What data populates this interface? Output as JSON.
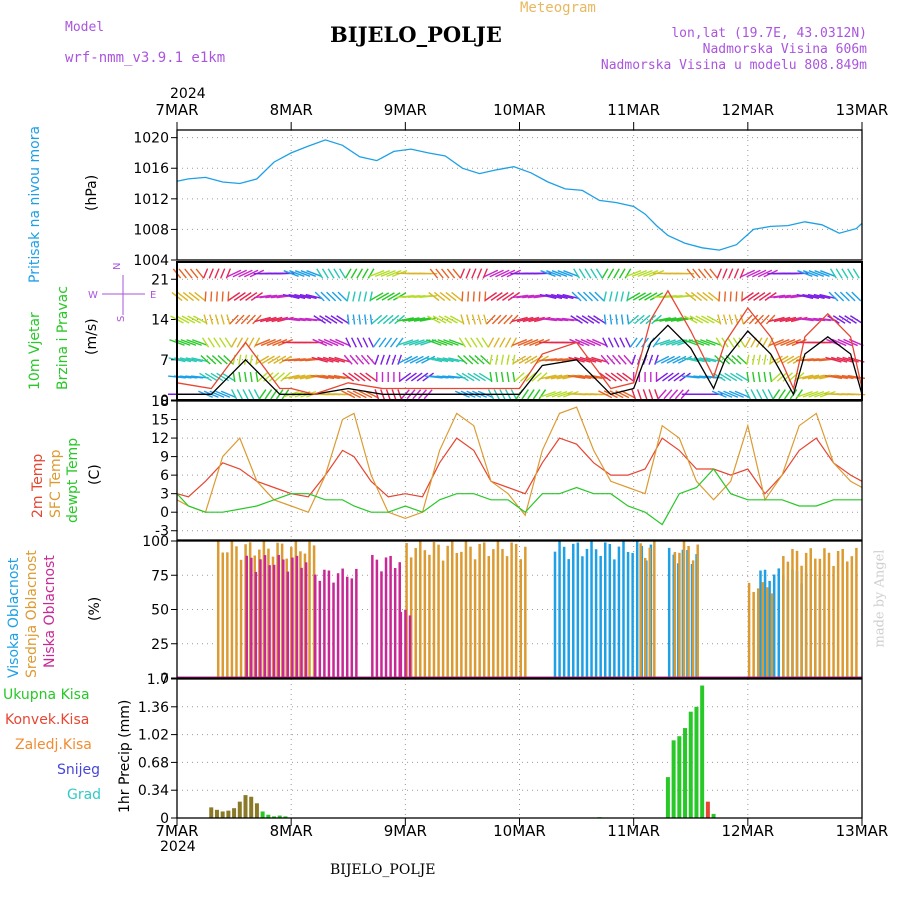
{
  "header": {
    "model_label": "Model",
    "model_name": "wrf-nmm_v3.9.1 e1km",
    "meteogram_label": "Meteogram",
    "station_title": "BIJELO_POLJE",
    "lonlat": "lon,lat (19.7E, 43.0312N)",
    "elevation": "Nadmorska Visina 606m",
    "model_elevation": "Nadmorska Visina u modelu 808.849m",
    "footer_station": "BIJELO_POLJE",
    "watermark": "made by Angel",
    "colors": {
      "model": "#aa55dd",
      "meteogram": "#e8b860",
      "info": "#aa55dd",
      "title": "#000000"
    }
  },
  "time_axis": {
    "year_top": "2024",
    "year_bottom": "2024",
    "ticks": [
      "7MAR",
      "8MAR",
      "9MAR",
      "10MAR",
      "11MAR",
      "12MAR",
      "13MAR"
    ]
  },
  "chart_data": [
    {
      "type": "line",
      "name": "pressure",
      "ylabel_lines": [
        "Pritisak na nivou mora"
      ],
      "unit": "(hPa)",
      "ylim": [
        1004,
        1021
      ],
      "yticks": [
        "1004",
        "1008",
        "1012",
        "1016",
        "1020"
      ],
      "yticks_values": [
        1004,
        1008,
        1012,
        1016,
        1020
      ],
      "grid": true,
      "series": [
        {
          "color": "#1ea0e6",
          "x": [
            0,
            0.1,
            0.25,
            0.4,
            0.55,
            0.7,
            0.85,
            1.0,
            1.15,
            1.3,
            1.45,
            1.6,
            1.75,
            1.9,
            2.05,
            2.2,
            2.35,
            2.5,
            2.65,
            2.8,
            2.95,
            3.1,
            3.25,
            3.4,
            3.55,
            3.7,
            3.85,
            4.0,
            4.1,
            4.2,
            4.3,
            4.45,
            4.6,
            4.75,
            4.9,
            5.05,
            5.2,
            5.35,
            5.5,
            5.65,
            5.8,
            5.95,
            6.0
          ],
          "y": [
            1014.3,
            1014.6,
            1014.8,
            1014.2,
            1014.0,
            1014.6,
            1016.8,
            1018.0,
            1018.9,
            1019.7,
            1019.0,
            1017.5,
            1017.0,
            1018.2,
            1018.5,
            1018.0,
            1017.6,
            1016.0,
            1015.3,
            1015.8,
            1016.2,
            1015.4,
            1014.2,
            1013.3,
            1013.1,
            1011.8,
            1011.5,
            1011.0,
            1010.0,
            1008.5,
            1007.2,
            1006.2,
            1005.6,
            1005.3,
            1006.0,
            1008.0,
            1008.4,
            1008.5,
            1009.0,
            1008.6,
            1007.5,
            1008.1,
            1008.8
          ]
        }
      ]
    },
    {
      "type": "line",
      "name": "wind",
      "ylabel_lines": [
        "10m Vjetar",
        "Brzina i Pravac"
      ],
      "unit": "(m/s)",
      "ylim": [
        0,
        24
      ],
      "yticks": [
        "0",
        "7",
        "14",
        "21"
      ],
      "yticks_values": [
        0,
        7,
        14,
        21
      ],
      "grid": true,
      "compass": {
        "n": "N",
        "s": "S",
        "e": "E",
        "w": "W",
        "color": "#aa55dd"
      },
      "series": [
        {
          "color": "#000000",
          "x": [
            0,
            0.3,
            0.6,
            0.9,
            1.0,
            1.2,
            1.5,
            1.8,
            2.1,
            2.4,
            2.7,
            3.0,
            3.2,
            3.5,
            3.8,
            4.0,
            4.15,
            4.3,
            4.5,
            4.7,
            4.8,
            5.0,
            5.2,
            5.4,
            5.5,
            5.7,
            5.9,
            6.0
          ],
          "y": [
            1,
            1,
            7,
            1,
            1,
            1,
            2,
            1,
            1,
            1,
            1,
            1,
            6,
            7,
            1,
            2,
            10,
            13,
            9,
            2,
            7,
            12,
            8,
            1,
            8,
            11,
            8,
            1
          ]
        },
        {
          "color": "#e64632",
          "x": [
            0,
            0.3,
            0.6,
            0.9,
            1.0,
            1.2,
            1.5,
            1.8,
            2.1,
            2.4,
            2.7,
            3.0,
            3.2,
            3.5,
            3.8,
            4.0,
            4.15,
            4.3,
            4.5,
            4.7,
            4.8,
            5.0,
            5.2,
            5.4,
            5.5,
            5.7,
            5.9,
            6.0
          ],
          "y": [
            3,
            2,
            10,
            2,
            2,
            1,
            3,
            2,
            2,
            2,
            2,
            2,
            8,
            10,
            2,
            3,
            14,
            19,
            12,
            4,
            10,
            16,
            11,
            2,
            11,
            15,
            11,
            2
          ]
        }
      ]
    },
    {
      "type": "line",
      "name": "temperature",
      "ylabel_lines": [
        "2m Temp",
        "SFC Temp",
        "dewpt Temp"
      ],
      "label_colors": [
        "#e64632",
        "#dc9b32",
        "#28c828"
      ],
      "unit": "(C)",
      "ylim": [
        -4.5,
        18
      ],
      "yticks": [
        "-3",
        "0",
        "3",
        "6",
        "9",
        "12",
        "15",
        "18"
      ],
      "yticks_values": [
        -3,
        0,
        3,
        6,
        9,
        12,
        15,
        18
      ],
      "grid": true,
      "series": [
        {
          "color": "#e64632",
          "x": [
            0,
            0.1,
            0.25,
            0.4,
            0.55,
            0.7,
            0.85,
            1.0,
            1.15,
            1.3,
            1.45,
            1.55,
            1.7,
            1.85,
            2.0,
            2.15,
            2.3,
            2.45,
            2.6,
            2.75,
            2.9,
            3.05,
            3.2,
            3.35,
            3.5,
            3.65,
            3.8,
            3.95,
            4.1,
            4.25,
            4.4,
            4.55,
            4.7,
            4.85,
            5.0,
            5.15,
            5.3,
            5.45,
            5.6,
            5.75,
            5.9,
            6.0
          ],
          "y": [
            3,
            2.5,
            5,
            8,
            7,
            5,
            4,
            3,
            2.5,
            6,
            10,
            9,
            5,
            2.5,
            3,
            2.5,
            8,
            12,
            10,
            5,
            4,
            3,
            8,
            12,
            11,
            8,
            6,
            6,
            7,
            12,
            10,
            7,
            7,
            6,
            7,
            3,
            6,
            10,
            12,
            8,
            6,
            5
          ]
        },
        {
          "color": "#dc9b32",
          "x": [
            0,
            0.1,
            0.25,
            0.4,
            0.55,
            0.7,
            0.85,
            1.0,
            1.15,
            1.3,
            1.45,
            1.55,
            1.7,
            1.85,
            2.0,
            2.15,
            2.3,
            2.45,
            2.6,
            2.75,
            2.9,
            3.05,
            3.2,
            3.35,
            3.5,
            3.65,
            3.8,
            3.95,
            4.1,
            4.25,
            4.4,
            4.55,
            4.7,
            4.85,
            5.0,
            5.15,
            5.3,
            5.45,
            5.6,
            5.75,
            5.9,
            6.0
          ],
          "y": [
            2,
            1,
            0,
            9,
            12,
            5,
            2,
            1,
            0,
            6,
            15,
            16,
            6,
            0,
            -1,
            0,
            10,
            16,
            14,
            5,
            3,
            -0.5,
            10,
            16,
            17,
            10,
            5,
            4,
            3,
            14,
            12,
            5,
            2,
            5,
            14,
            2,
            6,
            14,
            16,
            8,
            5,
            4
          ]
        },
        {
          "color": "#28c828",
          "x": [
            0,
            0.1,
            0.25,
            0.4,
            0.55,
            0.7,
            0.85,
            1.0,
            1.15,
            1.3,
            1.45,
            1.55,
            1.7,
            1.85,
            2.0,
            2.15,
            2.3,
            2.45,
            2.6,
            2.75,
            2.9,
            3.05,
            3.2,
            3.35,
            3.5,
            3.65,
            3.8,
            3.95,
            4.1,
            4.25,
            4.4,
            4.55,
            4.7,
            4.85,
            5.0,
            5.15,
            5.3,
            5.45,
            5.6,
            5.75,
            5.9,
            6.0
          ],
          "y": [
            3,
            1,
            0,
            0,
            0.5,
            1,
            2,
            3,
            3,
            2,
            2,
            1,
            0,
            0,
            1,
            0,
            2,
            3,
            3,
            2,
            2,
            0,
            3,
            3,
            4,
            3,
            3,
            1,
            0,
            -2,
            3,
            4,
            7,
            3,
            2,
            2,
            2,
            1,
            1,
            2,
            2,
            2
          ]
        }
      ]
    },
    {
      "type": "bar",
      "name": "cloud",
      "ylabel_lines": [
        "Visoka Oblacnost",
        "Srednja Oblacnost",
        "Niska Oblacnost"
      ],
      "label_colors": [
        "#1ea0e6",
        "#dc9b32",
        "#c82896"
      ],
      "unit": "(%)",
      "ylim": [
        0,
        100
      ],
      "yticks": [
        "0",
        "25",
        "50",
        "75",
        "100"
      ],
      "yticks_values": [
        0,
        25,
        50,
        75,
        100
      ],
      "grid": true,
      "layers": [
        {
          "name": "high",
          "color": "#1ea0e6",
          "ranges": [
            [
              3.3,
              4.15,
              100
            ],
            [
              4.3,
              4.55,
              95
            ],
            [
              5.1,
              5.65,
              80
            ]
          ]
        },
        {
          "name": "mid",
          "color": "#dc9b32",
          "ranges": [
            [
              0.35,
              1.2,
              100
            ],
            [
              2.0,
              3.05,
              100
            ],
            [
              4.05,
              4.2,
              100
            ],
            [
              4.35,
              4.55,
              100
            ],
            [
              5.0,
              5.2,
              70
            ],
            [
              5.3,
              5.95,
              95
            ]
          ]
        },
        {
          "name": "low",
          "color": "#c82896",
          "ranges": [
            [
              0.6,
              1.15,
              90
            ],
            [
              1.2,
              1.6,
              80
            ],
            [
              1.7,
              1.95,
              90
            ],
            [
              1.95,
              2.05,
              50
            ]
          ]
        }
      ]
    },
    {
      "type": "bar",
      "name": "precip",
      "ylabel_lines": [
        "1hr Precip (mm)"
      ],
      "legend": [
        {
          "label": "Ukupna Kisa",
          "color": "#28c828"
        },
        {
          "label": "Konvek.Kisa",
          "color": "#e64632"
        },
        {
          "label": "Zaledj.Kisa",
          "color": "#f08c32"
        },
        {
          "label": "Snijeg",
          "color": "#4646dc"
        },
        {
          "label": "Grad",
          "color": "#32c8c8"
        }
      ],
      "ylim": [
        0,
        1.7
      ],
      "yticks": [
        "0",
        "0.34",
        "0.68",
        "1.02",
        "1.36",
        "1.7"
      ],
      "yticks_values": [
        0,
        0.34,
        0.68,
        1.02,
        1.36,
        1.7
      ],
      "grid": true,
      "x": [
        0.3,
        0.35,
        0.4,
        0.45,
        0.5,
        0.55,
        0.6,
        0.65,
        0.7,
        0.75,
        0.8,
        0.85,
        0.9,
        0.95,
        3.7,
        4.3,
        4.35,
        4.4,
        4.45,
        4.5,
        4.55,
        4.6,
        4.65,
        4.7
      ],
      "values": [
        0.13,
        0.1,
        0.08,
        0.09,
        0.12,
        0.2,
        0.28,
        0.26,
        0.18,
        0.08,
        0.04,
        0.02,
        0.03,
        0.02,
        0.01,
        0.5,
        0.95,
        1.0,
        1.1,
        1.3,
        1.36,
        1.62,
        0.2,
        0.05
      ],
      "colors": [
        "#8a7a28",
        "#8a7a28",
        "#8a7a28",
        "#8a7a28",
        "#8a7a28",
        "#8a7a28",
        "#8a7a28",
        "#8a7a28",
        "#8a7a28",
        "#28c828",
        "#28c828",
        "#28c828",
        "#28c828",
        "#28c828",
        "#28c828",
        "#28c828",
        "#28c828",
        "#28c828",
        "#28c828",
        "#28c828",
        "#28c828",
        "#28c828",
        "#e64632",
        "#28c828"
      ]
    }
  ]
}
